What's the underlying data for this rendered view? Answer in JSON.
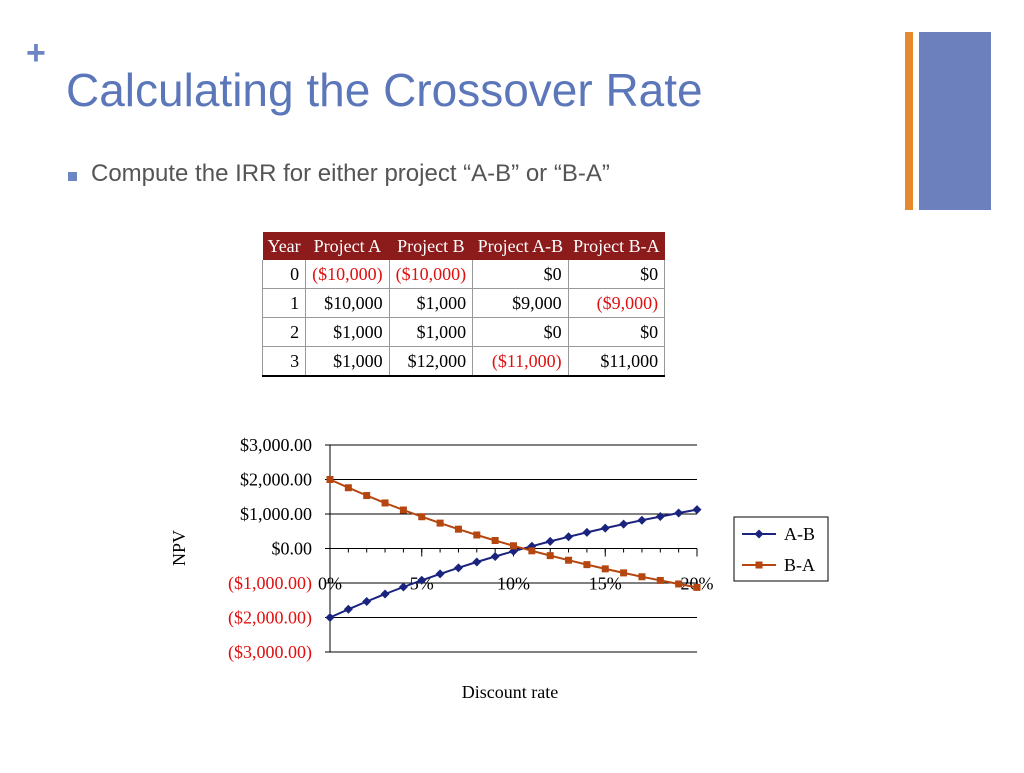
{
  "slide": {
    "plus": "+",
    "title": "Calculating the Crossover Rate",
    "bullet": "Compute the IRR for either project “A-B” or “B-A”"
  },
  "table": {
    "headers": [
      "Year",
      "Project A",
      "Project B",
      "Project A-B",
      "Project B-A"
    ],
    "rows": [
      [
        "0",
        "($10,000)",
        "($10,000)",
        "$0",
        "$0"
      ],
      [
        "1",
        "$10,000",
        "$1,000",
        "$9,000",
        "($9,000)"
      ],
      [
        "2",
        "$1,000",
        "$1,000",
        "$0",
        "$0"
      ],
      [
        "3",
        "$1,000",
        "$12,000",
        "($11,000)",
        "$11,000"
      ]
    ]
  },
  "colors": {
    "title": "#5b77b9",
    "accent_orange": "#e58a2c",
    "accent_blue": "#6b80bd",
    "table_header": "#8c1b1b",
    "negative": "#e01010",
    "series_ab": "#1a237e",
    "series_ba": "#b5460f"
  },
  "chart_data": {
    "type": "line",
    "xlabel": "Discount rate",
    "ylabel": "NPV",
    "x": [
      0,
      1,
      2,
      3,
      4,
      5,
      6,
      7,
      8,
      9,
      10,
      11,
      12,
      13,
      14,
      15,
      16,
      17,
      18,
      19,
      20
    ],
    "xticks": [
      0,
      5,
      10,
      15,
      20
    ],
    "xtick_labels": [
      "0%",
      "5%",
      "10%",
      "15%",
      "20%"
    ],
    "ylim": [
      -3000,
      3000
    ],
    "yticks": [
      3000,
      2000,
      1000,
      0,
      -1000,
      -2000,
      -3000
    ],
    "ytick_labels": [
      "$3,000.00",
      "$2,000.00",
      "$1,000.00",
      "$0.00",
      "($1,000.00)",
      "($2,000.00)",
      "($3,000.00)"
    ],
    "grid": true,
    "legend": "right",
    "series": [
      {
        "name": "A-B",
        "marker": "diamond",
        "values": [
          -2000,
          -1761,
          -1535,
          -1320,
          -1116,
          -921,
          -736,
          -560,
          -392,
          -232,
          -79,
          67,
          207,
          340,
          468,
          590,
          707,
          819,
          926,
          1028,
          1127
        ]
      },
      {
        "name": "B-A",
        "marker": "square",
        "values": [
          2000,
          1761,
          1535,
          1320,
          1116,
          921,
          736,
          560,
          392,
          232,
          79,
          -67,
          -207,
          -340,
          -468,
          -590,
          -707,
          -819,
          -926,
          -1028,
          -1127
        ]
      }
    ]
  }
}
